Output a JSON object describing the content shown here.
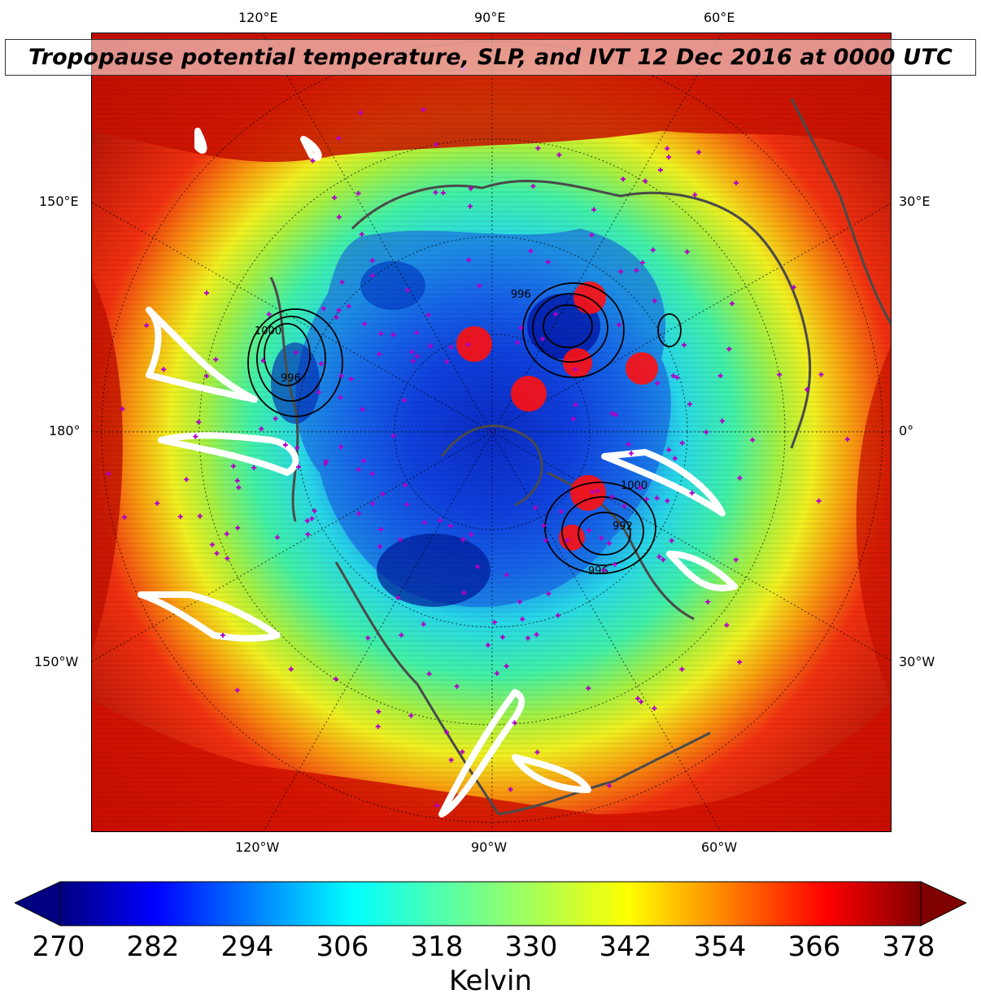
{
  "title": "Tropopause potential temperature, SLP, and IVT 12 Dec 2016 at 0000 UTC",
  "lon_labels": {
    "top": [
      "120°E",
      "90°E",
      "60°E"
    ],
    "bottom": [
      "120°W",
      "90°W",
      "60°W"
    ],
    "left": [
      "150°E",
      "180°",
      "150°W"
    ],
    "right": [
      "30°E",
      "0°",
      "30°W"
    ]
  },
  "colorbar": {
    "ticks": [
      "270",
      "282",
      "294",
      "306",
      "318",
      "330",
      "342",
      "354",
      "366",
      "378"
    ],
    "label": "Kelvin",
    "min": 270,
    "max": 378,
    "colormap": "jet",
    "extend": "both"
  },
  "slp_contour_labels": [
    "1000",
    "996",
    "996",
    "1000",
    "996",
    "992"
  ],
  "colors": {
    "coastline": "#4a4a4a",
    "ivt_contour": "#ffffff",
    "slp_contour": "#000000",
    "markers": "#b000c8",
    "precip_blobs": "#ff0000"
  }
}
